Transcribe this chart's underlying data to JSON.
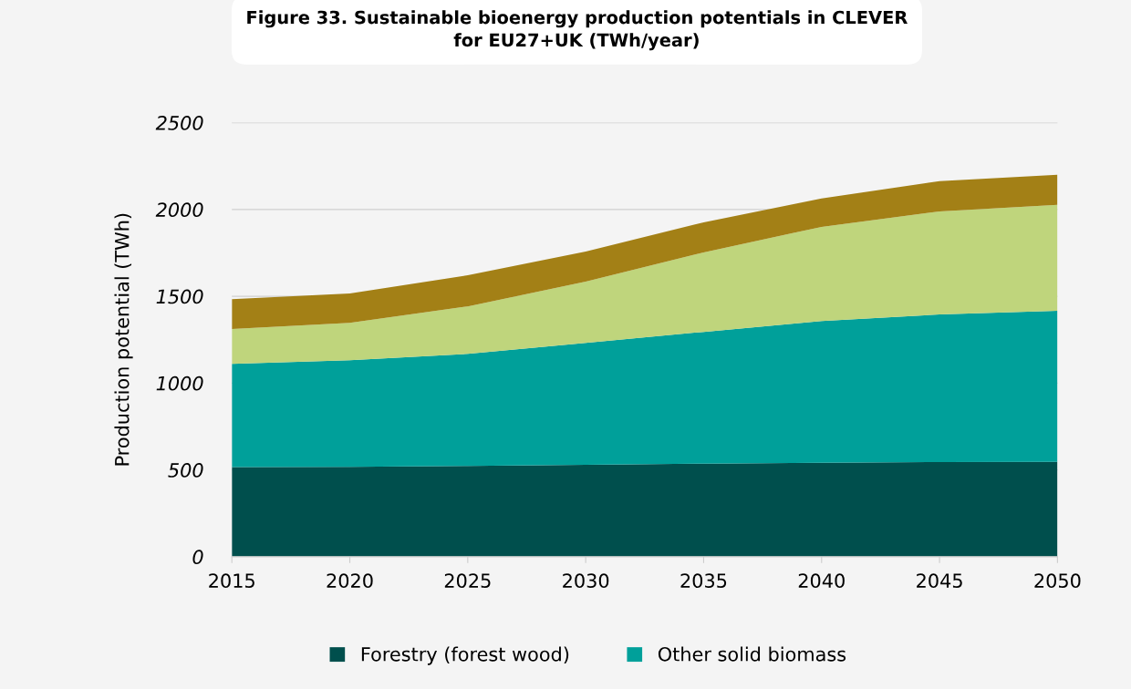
{
  "chart_data": {
    "type": "area",
    "stacked": true,
    "title": "Figure 33. Sustainable bioenergy production potentials in CLEVER\nfor EU27+UK (TWh/year)",
    "ylabel": "Production potential (TWh)",
    "x": [
      2015,
      2020,
      2025,
      2030,
      2035,
      2040,
      2045,
      2050
    ],
    "series": [
      {
        "name": "Forestry (forest wood)",
        "color": "#004f4d",
        "values": [
          516,
          517,
          523,
          530,
          536,
          541,
          545,
          547
        ]
      },
      {
        "name": "Other solid biomass",
        "color": "#00a09a",
        "values": [
          595,
          615,
          645,
          702,
          759,
          817,
          850,
          869
        ]
      },
      {
        "color": "#bfd57c",
        "values": [
          200,
          215,
          274,
          352,
          458,
          542,
          594,
          610
        ]
      },
      {
        "color": "#a38016",
        "values": [
          173,
          169,
          179,
          174,
          173,
          163,
          174,
          174
        ]
      }
    ],
    "xlim": [
      2015,
      2050
    ],
    "xticks": [
      2015,
      2020,
      2025,
      2030,
      2035,
      2040,
      2045,
      2050
    ],
    "ylim": [
      0,
      2500
    ],
    "yticks": [
      0,
      500,
      1000,
      1500,
      2000,
      2500
    ],
    "grid": "y",
    "legend": "bottom"
  }
}
